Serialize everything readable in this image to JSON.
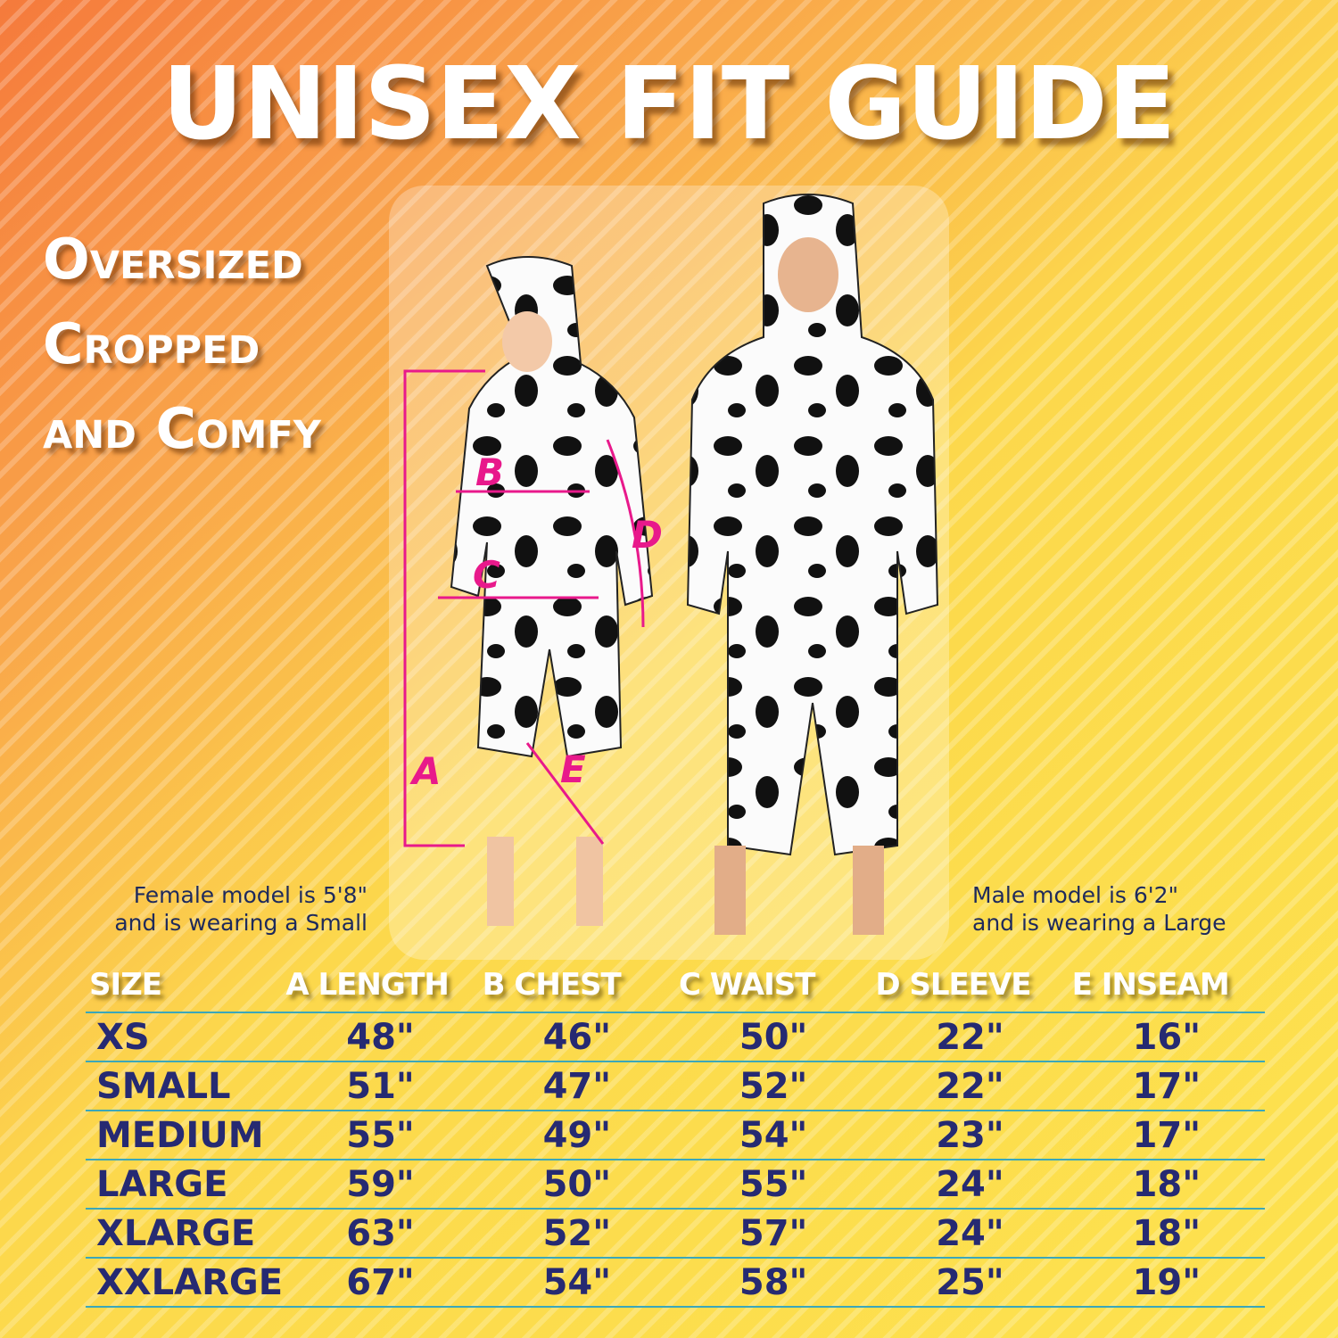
{
  "title": "UNISEX FIT GUIDE",
  "tagline": [
    "Oversized",
    "Cropped",
    "and Comfy"
  ],
  "measure_labels": [
    "A",
    "B",
    "C",
    "D",
    "E"
  ],
  "female_caption": [
    "Female model is 5'8\"",
    "and is wearing a Small"
  ],
  "male_caption": [
    "Male model is 6'2\"",
    "and is wearing a Large"
  ],
  "colors": {
    "accent": "#e8198b",
    "table_text": "#262a72",
    "rule": "#3ba7b9"
  },
  "table": {
    "headers": [
      "SIZE",
      "A LENGTH",
      "B CHEST",
      "C WAIST",
      "D SLEEVE",
      "E INSEAM"
    ],
    "rows": [
      [
        "XS",
        "48\"",
        "46\"",
        "50\"",
        "22\"",
        "16\""
      ],
      [
        "SMALL",
        "51\"",
        "47\"",
        "52\"",
        "22\"",
        "17\""
      ],
      [
        "MEDIUM",
        "55\"",
        "49\"",
        "54\"",
        "23\"",
        "17\""
      ],
      [
        "LARGE",
        "59\"",
        "50\"",
        "55\"",
        "24\"",
        "18\""
      ],
      [
        "XLARGE",
        "63\"",
        "52\"",
        "57\"",
        "24\"",
        "18\""
      ],
      [
        "XXLARGE",
        "67\"",
        "54\"",
        "58\"",
        "25\"",
        "19\""
      ]
    ]
  }
}
